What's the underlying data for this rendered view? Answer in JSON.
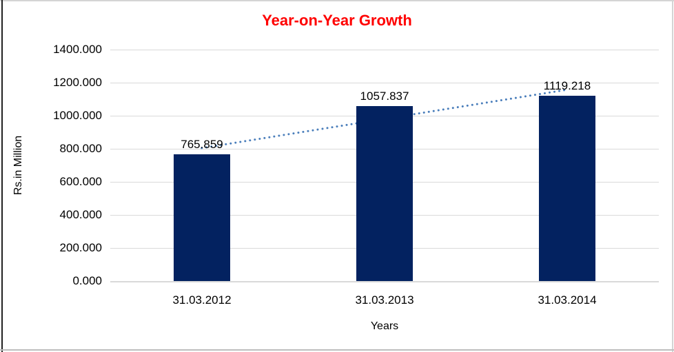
{
  "chart_data": {
    "type": "bar",
    "title": "Year-on-Year Growth",
    "categories": [
      "31.03.2012",
      "31.03.2013",
      "31.03.2014"
    ],
    "values": [
      765.859,
      1057.837,
      1119.218
    ],
    "data_labels": [
      "765.859",
      "1057.837",
      "1119.218"
    ],
    "xlabel": "Years",
    "ylabel": "Rs.in Million",
    "ylim": [
      0,
      1400
    ],
    "ytick_interval": 200,
    "ytick_labels": [
      "0.000",
      "200.000",
      "400.000",
      "600.000",
      "800.000",
      "1000.000",
      "1200.000",
      "1400.000"
    ],
    "grid": true,
    "legend": false,
    "colors": {
      "bar": "#032260",
      "title": "#ff0000",
      "gridline": "#d9d9d9",
      "text": "#000000",
      "trendline": "#4a7ebb"
    },
    "trendline": {
      "type": "linear",
      "style": "dotted",
      "color": "#4a7ebb"
    }
  }
}
